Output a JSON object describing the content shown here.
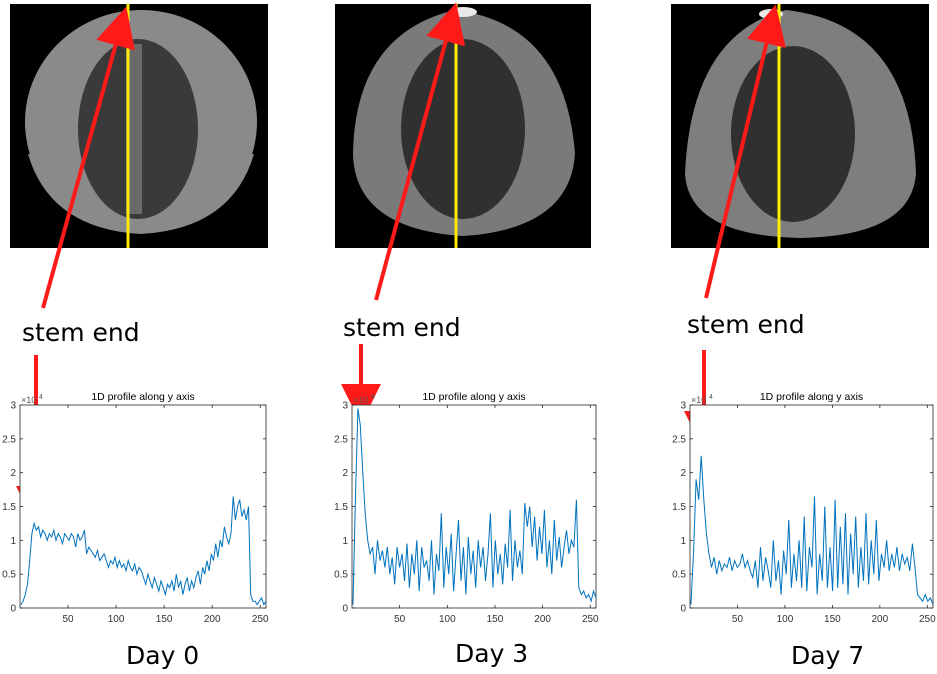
{
  "colors": {
    "marker_line": "#ffee00",
    "arrow": "#ff1a1a",
    "trace": "#0072bd",
    "axis": "#262626"
  },
  "panels": [
    {
      "day_label": "Day 0",
      "annotation": "stem end",
      "chart_data": {
        "type": "line",
        "title": "1D profile along y axis",
        "y_exponent": "×10",
        "y_exponent_power": "4",
        "xlim": [
          0,
          256
        ],
        "ylim": [
          0,
          3
        ],
        "xticks": [
          "50",
          "100",
          "150",
          "200",
          "250"
        ],
        "yticks": [
          "0",
          "0.5",
          "1",
          "1.5",
          "2",
          "2.5",
          "3"
        ],
        "series": [
          {
            "name": "profile",
            "values": [
              0.05,
              0.1,
              0.2,
              0.35,
              0.7,
              1.1,
              1.25,
              1.15,
              1.2,
              1.05,
              1.15,
              1.1,
              1.0,
              1.1,
              1.05,
              1.15,
              1.0,
              1.1,
              1.05,
              0.95,
              1.1,
              1.05,
              1.0,
              1.1,
              1.05,
              0.9,
              1.1,
              1.0,
              1.05,
              1.15,
              0.8,
              0.9,
              0.85,
              0.8,
              0.75,
              0.85,
              0.7,
              0.75,
              0.8,
              0.7,
              0.6,
              0.7,
              0.65,
              0.75,
              0.6,
              0.7,
              0.6,
              0.65,
              0.55,
              0.7,
              0.6,
              0.55,
              0.65,
              0.5,
              0.6,
              0.55,
              0.45,
              0.35,
              0.5,
              0.4,
              0.3,
              0.45,
              0.35,
              0.25,
              0.4,
              0.3,
              0.2,
              0.35,
              0.3,
              0.4,
              0.25,
              0.5,
              0.3,
              0.4,
              0.2,
              0.35,
              0.45,
              0.25,
              0.4,
              0.3,
              0.45,
              0.55,
              0.35,
              0.6,
              0.5,
              0.7,
              0.55,
              0.8,
              0.7,
              0.95,
              0.75,
              1.0,
              0.9,
              1.2,
              1.05,
              0.95,
              1.1,
              1.65,
              1.3,
              1.5,
              1.6,
              1.35,
              1.45,
              1.3,
              1.5,
              0.2,
              0.1,
              0.1,
              0.05,
              0.1,
              0.15,
              0.05,
              0.1
            ]
          }
        ]
      }
    },
    {
      "day_label": "Day 3",
      "annotation": "stem end",
      "chart_data": {
        "type": "line",
        "title": "1D profile along y axis",
        "y_exponent": "×10",
        "y_exponent_power": "4",
        "xlim": [
          0,
          256
        ],
        "ylim": [
          0,
          3
        ],
        "xticks": [
          "50",
          "100",
          "150",
          "200",
          "250"
        ],
        "yticks": [
          "0",
          "0.5",
          "1",
          "1.5",
          "2",
          "2.5",
          "3"
        ],
        "series": [
          {
            "name": "profile",
            "values": [
              0.05,
              1.6,
              2.95,
              2.7,
              2.0,
              1.4,
              1.0,
              0.8,
              0.9,
              0.5,
              1.0,
              0.7,
              0.85,
              0.6,
              0.9,
              0.5,
              0.75,
              0.35,
              0.9,
              0.6,
              0.8,
              0.4,
              0.95,
              0.3,
              0.8,
              0.5,
              1.0,
              0.25,
              0.9,
              0.6,
              0.7,
              0.4,
              1.0,
              0.2,
              0.8,
              0.55,
              1.4,
              0.3,
              0.9,
              0.5,
              1.1,
              0.25,
              0.8,
              1.3,
              0.4,
              0.9,
              0.2,
              1.05,
              0.5,
              0.85,
              0.3,
              1.0,
              0.6,
              0.9,
              0.4,
              0.8,
              1.4,
              0.3,
              1.0,
              0.5,
              0.8,
              0.35,
              0.95,
              0.6,
              1.45,
              0.4,
              1.0,
              0.6,
              0.85,
              0.5,
              1.55,
              1.2,
              1.5,
              0.9,
              1.35,
              0.7,
              1.2,
              0.8,
              1.45,
              0.6,
              1.0,
              0.5,
              1.3,
              0.7,
              1.05,
              0.6,
              0.9,
              1.15,
              0.8,
              1.0,
              0.9,
              1.6,
              0.3,
              0.2,
              0.25,
              0.15,
              0.2,
              0.1,
              0.25,
              0.15
            ]
          }
        ]
      }
    },
    {
      "day_label": "Day 7",
      "annotation": "stem end",
      "chart_data": {
        "type": "line",
        "title": "1D profile along y axis",
        "y_exponent": "×10",
        "y_exponent_power": "4",
        "xlim": [
          0,
          256
        ],
        "ylim": [
          0,
          3
        ],
        "xticks": [
          "50",
          "100",
          "150",
          "200",
          "250"
        ],
        "yticks": [
          "0",
          "0.5",
          "1",
          "1.5",
          "2",
          "2.5",
          "3"
        ],
        "series": [
          {
            "name": "profile",
            "values": [
              0.05,
              0.8,
              1.9,
              1.6,
              2.25,
              1.6,
              1.1,
              0.8,
              0.6,
              0.75,
              0.5,
              0.7,
              0.55,
              0.65,
              0.6,
              0.75,
              0.55,
              0.7,
              0.6,
              0.65,
              0.8,
              0.6,
              0.7,
              0.55,
              0.45,
              0.7,
              0.3,
              0.9,
              0.4,
              0.75,
              0.55,
              0.3,
              1.0,
              0.4,
              0.7,
              0.2,
              0.85,
              0.5,
              1.3,
              0.3,
              0.8,
              0.4,
              1.0,
              0.3,
              1.35,
              0.25,
              0.9,
              0.6,
              1.65,
              0.2,
              0.8,
              0.4,
              1.5,
              0.3,
              0.9,
              0.25,
              1.6,
              0.3,
              1.2,
              0.35,
              1.4,
              0.2,
              1.1,
              0.5,
              1.35,
              0.3,
              0.9,
              0.4,
              1.4,
              0.35,
              1.0,
              0.5,
              1.3,
              0.4,
              0.8,
              0.6,
              1.0,
              0.55,
              0.8,
              0.6,
              0.9,
              0.55,
              0.8,
              0.65,
              0.75,
              0.55,
              0.95,
              0.6,
              0.2,
              0.15,
              0.1,
              0.2,
              0.1,
              0.15,
              0.05
            ]
          }
        ]
      }
    }
  ]
}
